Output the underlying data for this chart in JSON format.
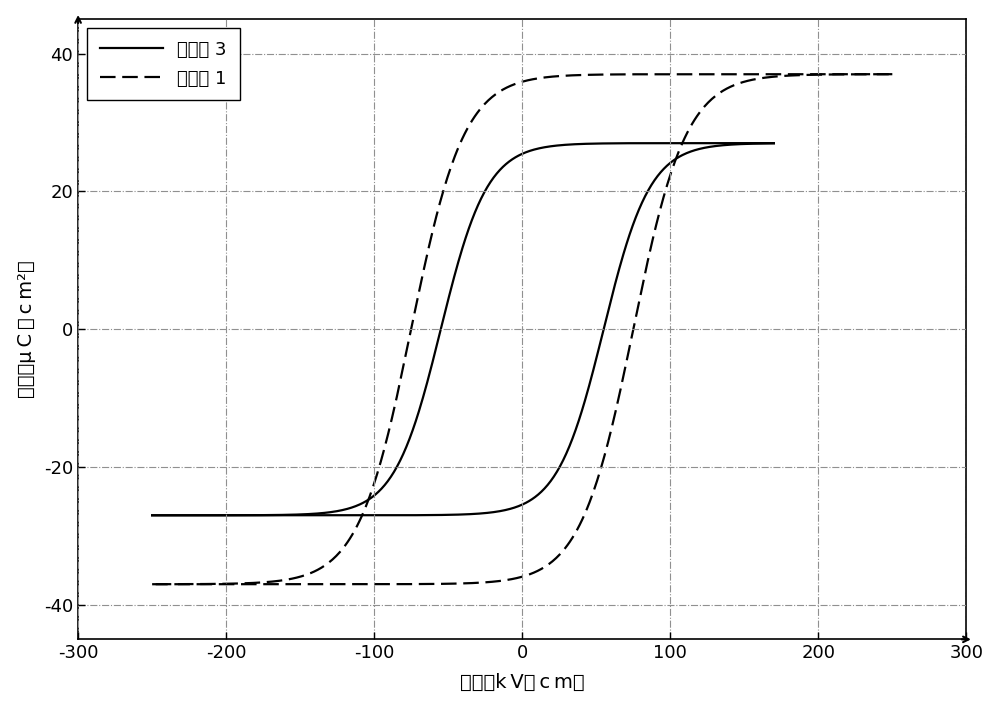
{
  "xlabel": "电场（k V／ c m）",
  "ylabel": "极化（μ C ／ c m²）",
  "xlim": [
    -300,
    300
  ],
  "ylim": [
    -45,
    45
  ],
  "xticks": [
    -300,
    -200,
    -100,
    0,
    100,
    200,
    300
  ],
  "yticks": [
    -40,
    -20,
    0,
    20,
    40
  ],
  "legend_labels": [
    "实施例 3",
    "比较例 1"
  ],
  "line_color": "#000000",
  "bg_color": "#ffffff",
  "fig_width": 10.0,
  "fig_height": 7.09
}
